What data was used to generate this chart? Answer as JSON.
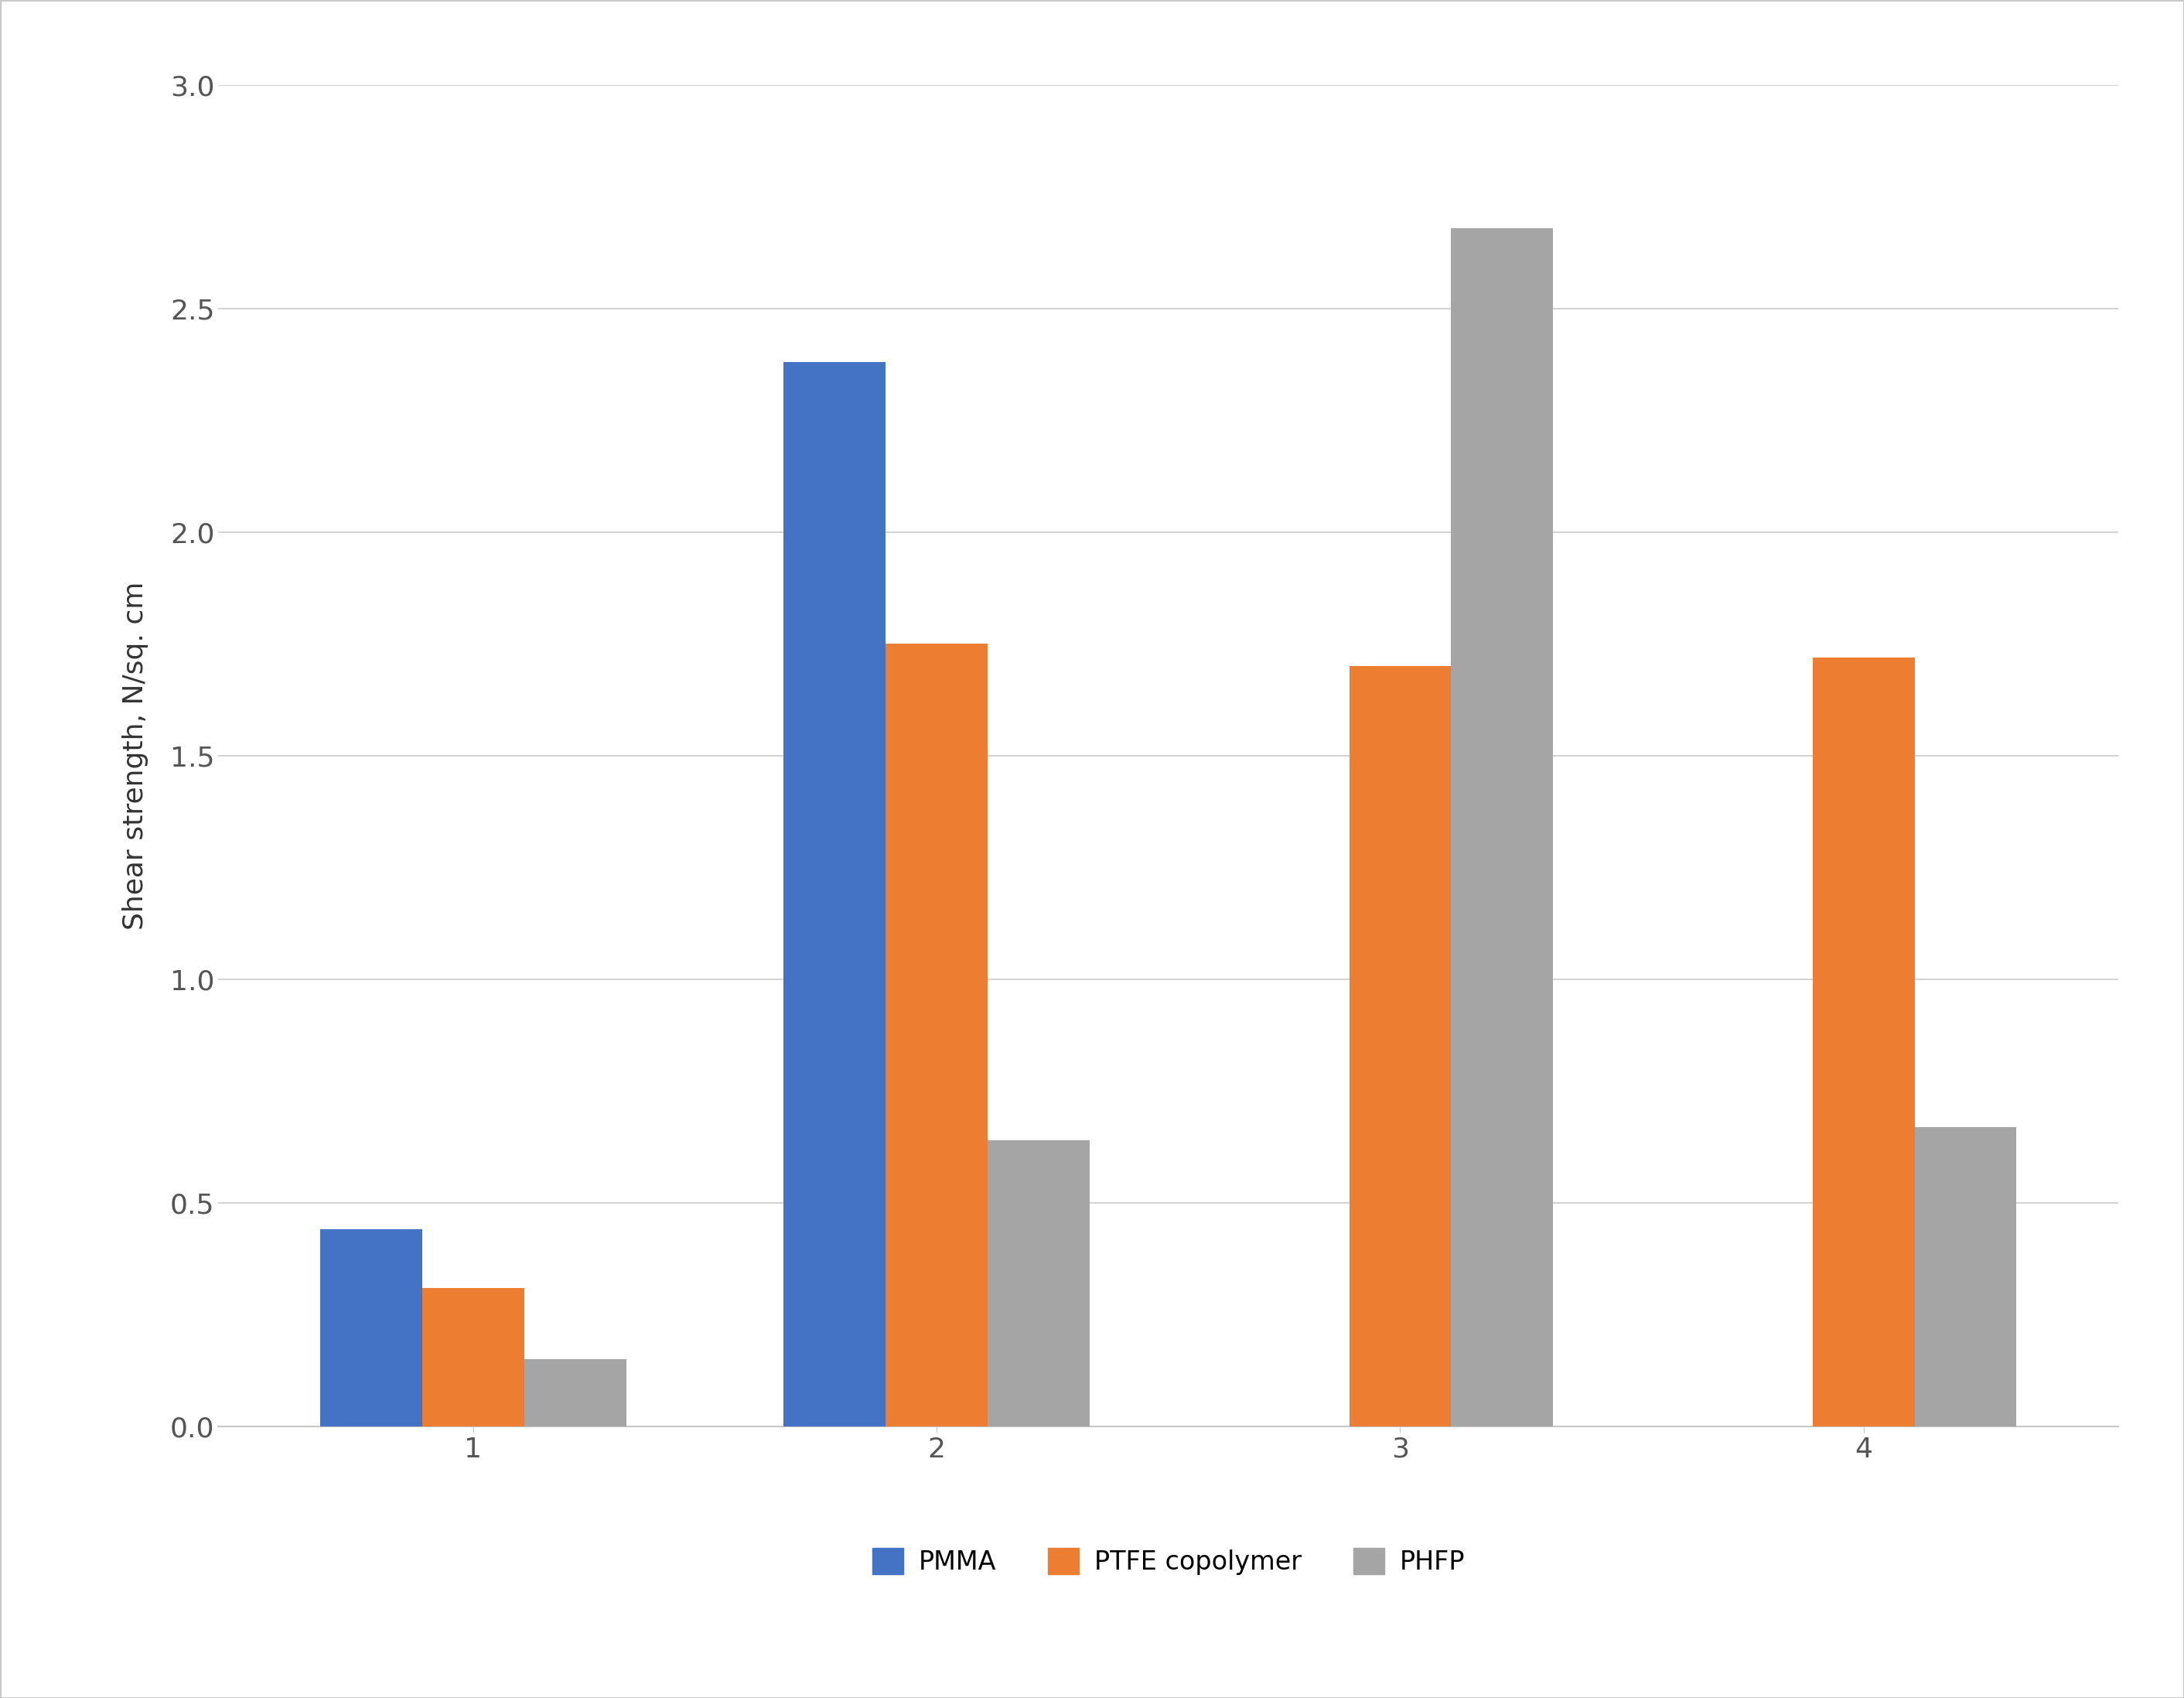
{
  "categories": [
    "1",
    "2",
    "3",
    "4"
  ],
  "series": {
    "PMMA": [
      0.44,
      2.38,
      0.0,
      0.0
    ],
    "PTFE copolymer": [
      0.31,
      1.75,
      1.7,
      1.72
    ],
    "PHFP": [
      0.15,
      0.64,
      2.68,
      0.67
    ]
  },
  "colors": {
    "PMMA": "#4472C4",
    "PTFE copolymer": "#ED7D31",
    "PHFP": "#A5A5A5"
  },
  "ylabel": "Shear strength, N/sq. cm",
  "ylim": [
    0.0,
    3.0
  ],
  "yticks": [
    0.0,
    0.5,
    1.0,
    1.5,
    2.0,
    2.5,
    3.0
  ],
  "background_color": "#ffffff",
  "plot_background": "#ffffff",
  "grid_color": "#d3d3d3",
  "bar_width": 0.22,
  "tick_fontsize": 26,
  "label_fontsize": 26,
  "legend_fontsize": 24,
  "outer_border_color": "#c8c8c8",
  "outer_border_top_color": "#c0c0c0",
  "spine_color": "#c8c8c8"
}
